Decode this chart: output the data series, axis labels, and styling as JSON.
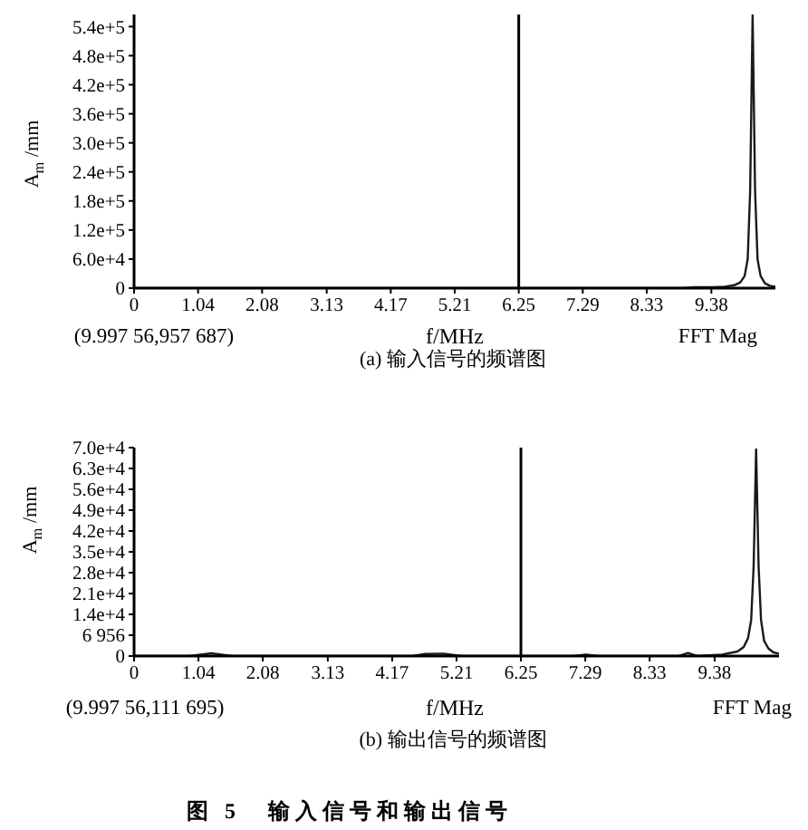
{
  "chart_data": [
    {
      "type": "line",
      "title": "(a) 输入信号的频谱图",
      "xlabel": "f/MHz",
      "ylabel": "A$_{m}$ /mm",
      "annotations": [
        "(9.997 56,957 687)",
        "FFT Mag"
      ],
      "x": [
        0,
        1.0,
        2.0,
        3.0,
        4.0,
        5.0,
        6.0,
        7.0,
        8.0,
        8.9,
        9.1,
        9.4,
        9.6,
        9.75,
        9.85,
        9.92,
        9.97,
        10.01,
        10.05,
        10.09,
        10.13,
        10.18,
        10.25,
        10.33,
        10.42
      ],
      "values": [
        0,
        0,
        0,
        0,
        0,
        0,
        0,
        0,
        0,
        0,
        2000,
        2000,
        3000,
        6000,
        12000,
        25000,
        60000,
        200000,
        565000,
        200000,
        60000,
        25000,
        10000,
        5000,
        3000
      ],
      "color": "#1a1a1a",
      "xlim": [
        0,
        10.42
      ],
      "xticks": [
        0,
        1.04,
        2.08,
        3.13,
        4.17,
        5.21,
        6.25,
        7.29,
        8.33,
        9.38
      ],
      "ylim": [
        0,
        565000
      ],
      "yticks": [
        0,
        {
          "value": 60000,
          "label": "6.0e+4"
        },
        {
          "value": 120000,
          "label": "1.2e+5"
        },
        {
          "value": 180000,
          "label": "1.8e+5"
        },
        {
          "value": 240000,
          "label": "2.4e+5"
        },
        {
          "value": 300000,
          "label": "3.0e+5"
        },
        {
          "value": 360000,
          "label": "3.6e+5"
        },
        {
          "value": 420000,
          "label": "4.2e+5"
        },
        {
          "value": 480000,
          "label": "4.8e+5"
        },
        {
          "value": 540000,
          "label": "5.4e+5"
        }
      ],
      "ref_lines": [
        {
          "axis": "x",
          "value": 6.25,
          "color": "#000000"
        }
      ]
    },
    {
      "type": "line",
      "title": "(b) 输出信号的频谱图",
      "xlabel": "f/MHz",
      "ylabel": "A$_{m}$ /mm",
      "annotations": [
        "(9.997 56,111 695)",
        "FFT Mag",
        "图 5　输入信号和输出信号"
      ],
      "x": [
        0,
        0.9,
        1.25,
        1.6,
        2.6,
        4.5,
        4.7,
        5.0,
        5.3,
        7.1,
        7.3,
        7.5,
        8.8,
        8.95,
        9.1,
        9.5,
        9.75,
        9.85,
        9.92,
        9.97,
        10.01,
        10.05,
        10.09,
        10.13,
        10.18,
        10.25,
        10.33,
        10.42
      ],
      "values": [
        0,
        0,
        900,
        0,
        0,
        0,
        700,
        800,
        0,
        0,
        500,
        0,
        0,
        1000,
        0,
        500,
        1500,
        3000,
        6000,
        12000,
        30000,
        69000,
        30000,
        12000,
        5000,
        2500,
        1200,
        800
      ],
      "color": "#1a1a1a",
      "xlim": [
        0,
        10.42
      ],
      "xticks": [
        0,
        1.04,
        2.08,
        3.13,
        4.17,
        5.21,
        6.25,
        7.29,
        8.33,
        9.38
      ],
      "ylim": [
        0,
        69560
      ],
      "yticks": [
        0,
        {
          "value": 6956,
          "label": "6 956"
        },
        {
          "value": 13912,
          "label": "1.4e+4"
        },
        {
          "value": 20868,
          "label": "2.1e+4"
        },
        {
          "value": 27824,
          "label": "2.8e+4"
        },
        {
          "value": 34780,
          "label": "3.5e+4"
        },
        {
          "value": 41736,
          "label": "4.2e+4"
        },
        {
          "value": 48692,
          "label": "4.9e+4"
        },
        {
          "value": 55648,
          "label": "5.6e+4"
        },
        {
          "value": 62604,
          "label": "6.3e+4"
        },
        {
          "value": 69560,
          "label": "7.0e+4"
        }
      ],
      "ref_lines": [
        {
          "axis": "x",
          "value": 6.25,
          "color": "#000000"
        }
      ]
    }
  ]
}
